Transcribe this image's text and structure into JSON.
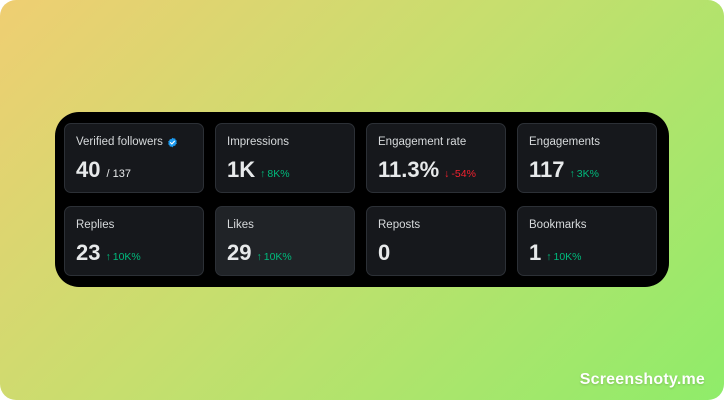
{
  "colors": {
    "panel_bg": "#000000",
    "card_bg": "#16181c",
    "card_highlight_bg": "#202327",
    "up": "#00ba7c",
    "down": "#f4212e",
    "verified": "#1d9bf0"
  },
  "stats": [
    {
      "label": "Verified followers",
      "verified": true,
      "value": "40",
      "sub": "/ 137"
    },
    {
      "label": "Impressions",
      "value": "1K",
      "delta": {
        "dir": "up",
        "arrow": "↑",
        "text": "8K%"
      }
    },
    {
      "label": "Engagement rate",
      "value": "11.3%",
      "delta": {
        "dir": "down",
        "arrow": "↓",
        "text": "-54%"
      }
    },
    {
      "label": "Engagements",
      "value": "117",
      "delta": {
        "dir": "up",
        "arrow": "↑",
        "text": "3K%"
      }
    },
    {
      "label": "Replies",
      "value": "23",
      "delta": {
        "dir": "up",
        "arrow": "↑",
        "text": "10K%"
      }
    },
    {
      "label": "Likes",
      "value": "29",
      "delta": {
        "dir": "up",
        "arrow": "↑",
        "text": "10K%"
      }
    },
    {
      "label": "Reposts",
      "value": "0"
    },
    {
      "label": "Bookmarks",
      "value": "1",
      "delta": {
        "dir": "up",
        "arrow": "↑",
        "text": "10K%"
      }
    }
  ],
  "watermark": "Screenshoty.me"
}
